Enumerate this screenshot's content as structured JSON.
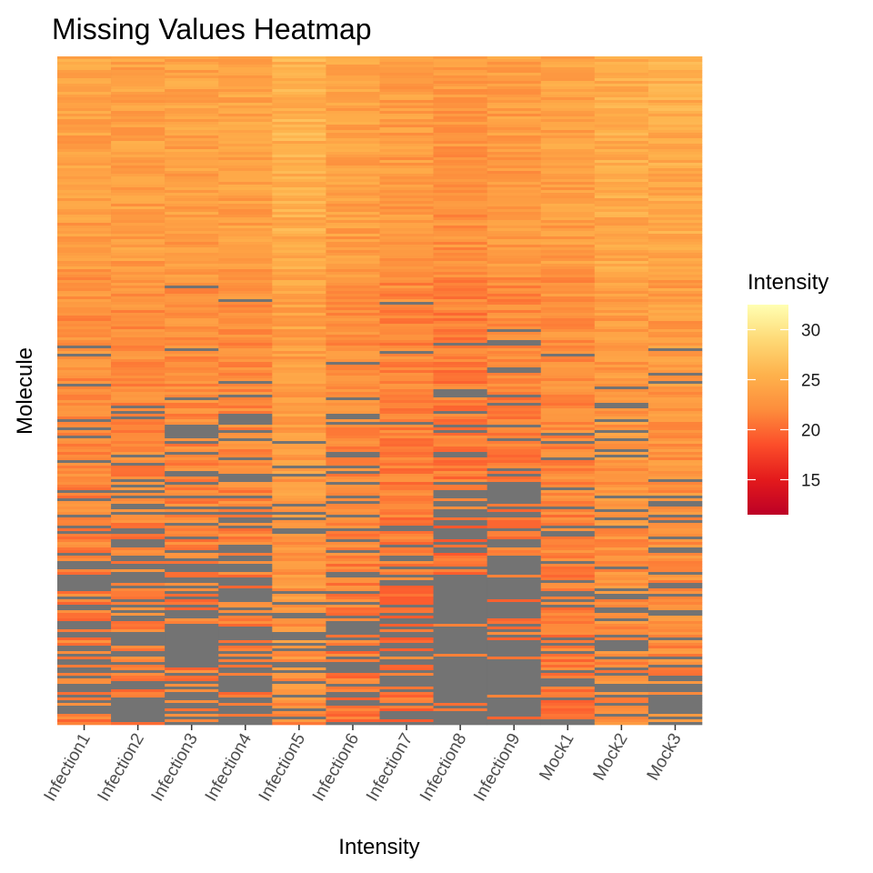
{
  "chart_data": {
    "type": "heatmap",
    "title": "Missing Values Heatmap",
    "xlabel": "Intensity",
    "ylabel": "Molecule",
    "categories": [
      "Infection1",
      "Infection2",
      "Infection3",
      "Infection4",
      "Infection5",
      "Infection6",
      "Infection7",
      "Infection8",
      "Infection9",
      "Mock1",
      "Mock2",
      "Mock3"
    ],
    "grid": false,
    "legend": {
      "title": "Intensity",
      "placement": "right",
      "ticks": [
        15,
        20,
        25,
        30
      ],
      "range": [
        11.5,
        32.5
      ]
    },
    "color_scale": {
      "low": "#bd0026",
      "stops": [
        "#bd0026",
        "#e31a1c",
        "#fc4e2a",
        "#fd8d3c",
        "#feb24c",
        "#fed976",
        "#ffffb2"
      ],
      "missing_color": "#737373"
    },
    "molecule_count_estimate": 1200,
    "missing_fraction_by_sample": [
      0.22,
      0.24,
      0.3,
      0.33,
      0.12,
      0.27,
      0.18,
      0.5,
      0.42,
      0.1,
      0.16,
      0.2
    ],
    "base_intensity_by_sample": [
      23,
      23,
      23,
      23,
      24.5,
      23,
      22.5,
      22,
      22.5,
      23,
      24,
      24
    ]
  }
}
